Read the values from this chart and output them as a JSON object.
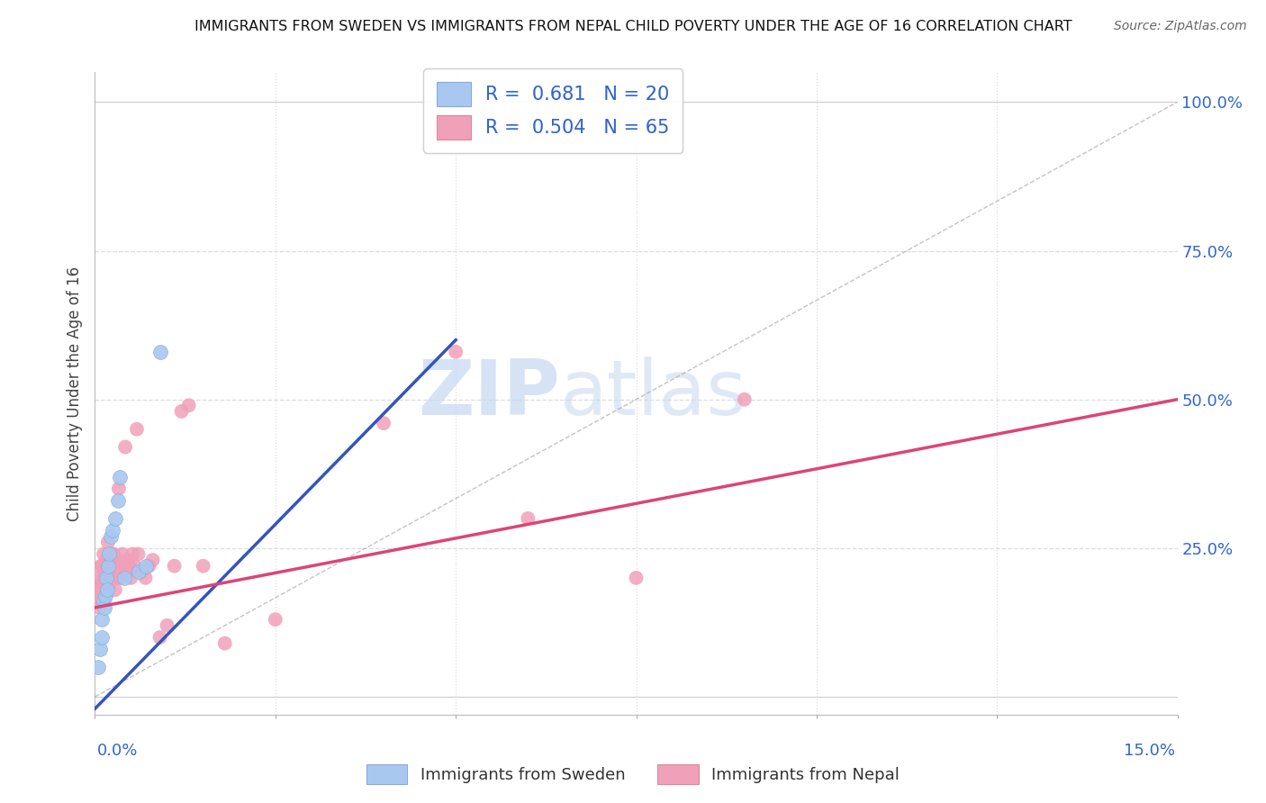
{
  "title": "IMMIGRANTS FROM SWEDEN VS IMMIGRANTS FROM NEPAL CHILD POVERTY UNDER THE AGE OF 16 CORRELATION CHART",
  "source": "Source: ZipAtlas.com",
  "ylabel": "Child Poverty Under the Age of 16",
  "yticks": [
    0.0,
    0.25,
    0.5,
    0.75,
    1.0
  ],
  "ytick_labels": [
    "",
    "25.0%",
    "50.0%",
    "75.0%",
    "100.0%"
  ],
  "xlim": [
    0.0,
    0.15
  ],
  "ylim": [
    -0.03,
    1.05
  ],
  "legend_sweden": "R =  0.681   N = 20",
  "legend_nepal": "R =  0.504   N = 65",
  "legend_label_sweden": "Immigrants from Sweden",
  "legend_label_nepal": "Immigrants from Nepal",
  "sweden_color": "#a8c8f0",
  "nepal_color": "#f0a0b8",
  "sweden_line_color": "#3355bb",
  "nepal_line_color": "#dd4477",
  "ref_line_color": "#aaaaaa",
  "watermark_zip": "ZIP",
  "watermark_atlas": "atlas",
  "watermark_color_zip": "#c5d8f0",
  "watermark_color_atlas": "#c5d8f0",
  "blue_text_color": "#3366cc",
  "sweden_x": [
    0.0005,
    0.0007,
    0.0009,
    0.001,
    0.0012,
    0.0013,
    0.0015,
    0.0016,
    0.0017,
    0.0018,
    0.002,
    0.0022,
    0.0025,
    0.0028,
    0.0032,
    0.0035,
    0.004,
    0.006,
    0.007,
    0.009
  ],
  "sweden_y": [
    0.05,
    0.08,
    0.1,
    0.13,
    0.16,
    0.15,
    0.17,
    0.2,
    0.18,
    0.22,
    0.24,
    0.27,
    0.28,
    0.3,
    0.33,
    0.37,
    0.2,
    0.21,
    0.22,
    0.58
  ],
  "nepal_x": [
    0.0003,
    0.0005,
    0.0006,
    0.0008,
    0.0008,
    0.0009,
    0.001,
    0.001,
    0.0011,
    0.0012,
    0.0012,
    0.0013,
    0.0014,
    0.0015,
    0.0015,
    0.0016,
    0.0017,
    0.0018,
    0.0018,
    0.0019,
    0.002,
    0.0021,
    0.0022,
    0.0023,
    0.0024,
    0.0025,
    0.0026,
    0.0027,
    0.0028,
    0.0028,
    0.003,
    0.0031,
    0.0032,
    0.0033,
    0.0034,
    0.0035,
    0.0036,
    0.0038,
    0.004,
    0.0042,
    0.0044,
    0.0046,
    0.0048,
    0.005,
    0.0052,
    0.0055,
    0.0058,
    0.006,
    0.0065,
    0.007,
    0.0075,
    0.008,
    0.009,
    0.01,
    0.011,
    0.012,
    0.013,
    0.015,
    0.018,
    0.025,
    0.04,
    0.05,
    0.06,
    0.075,
    0.09
  ],
  "nepal_y": [
    0.18,
    0.2,
    0.15,
    0.16,
    0.22,
    0.19,
    0.18,
    0.22,
    0.17,
    0.2,
    0.24,
    0.21,
    0.17,
    0.19,
    0.23,
    0.22,
    0.2,
    0.22,
    0.26,
    0.21,
    0.19,
    0.23,
    0.22,
    0.2,
    0.24,
    0.2,
    0.24,
    0.21,
    0.18,
    0.22,
    0.23,
    0.2,
    0.22,
    0.35,
    0.21,
    0.22,
    0.2,
    0.24,
    0.22,
    0.42,
    0.21,
    0.23,
    0.22,
    0.2,
    0.24,
    0.22,
    0.45,
    0.24,
    0.21,
    0.2,
    0.22,
    0.23,
    0.1,
    0.12,
    0.22,
    0.48,
    0.49,
    0.22,
    0.09,
    0.13,
    0.46,
    0.58,
    0.3,
    0.2,
    0.5
  ],
  "sweden_line_x0": 0.0,
  "sweden_line_y0": -0.02,
  "sweden_line_x1": 0.05,
  "sweden_line_y1": 0.6,
  "nepal_line_x0": 0.0,
  "nepal_line_y0": 0.15,
  "nepal_line_x1": 0.15,
  "nepal_line_y1": 0.5
}
